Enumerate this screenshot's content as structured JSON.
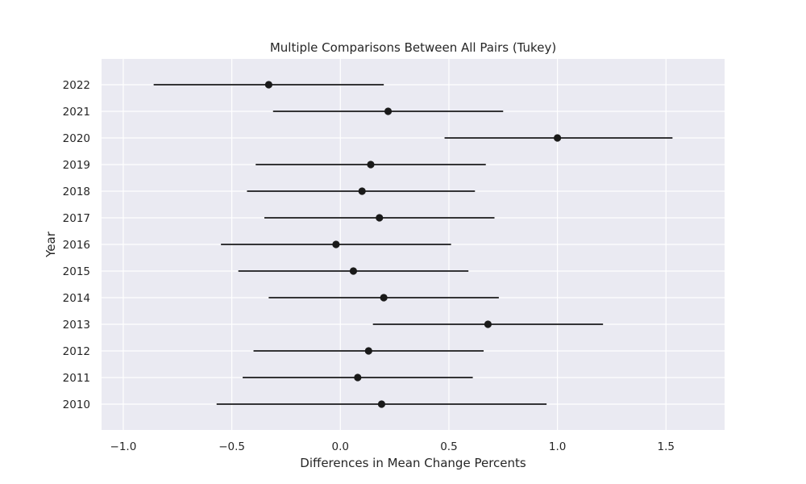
{
  "chart_data": {
    "type": "errorbar",
    "title": "Multiple Comparisons Between All Pairs (Tukey)",
    "xlabel": "Differences in Mean Change Percents",
    "ylabel": "Year",
    "xlim": [
      -1.1,
      1.77
    ],
    "xticks": [
      -1.0,
      -0.5,
      0.0,
      0.5,
      1.0,
      1.5
    ],
    "xtick_labels": [
      "−1.0",
      "−0.5",
      "0.0",
      "0.5",
      "1.0",
      "1.5"
    ],
    "grid": true,
    "background_color": "#eaeaf2",
    "grid_color": "#ffffff",
    "mark_color": "#1a1a1a",
    "series": [
      {
        "category": "2022",
        "mean": -0.33,
        "lower": -0.86,
        "upper": 0.2
      },
      {
        "category": "2021",
        "mean": 0.22,
        "lower": -0.31,
        "upper": 0.75
      },
      {
        "category": "2020",
        "mean": 1.0,
        "lower": 0.48,
        "upper": 1.53
      },
      {
        "category": "2019",
        "mean": 0.14,
        "lower": -0.39,
        "upper": 0.67
      },
      {
        "category": "2018",
        "mean": 0.1,
        "lower": -0.43,
        "upper": 0.62
      },
      {
        "category": "2017",
        "mean": 0.18,
        "lower": -0.35,
        "upper": 0.71
      },
      {
        "category": "2016",
        "mean": -0.02,
        "lower": -0.55,
        "upper": 0.51
      },
      {
        "category": "2015",
        "mean": 0.06,
        "lower": -0.47,
        "upper": 0.59
      },
      {
        "category": "2014",
        "mean": 0.2,
        "lower": -0.33,
        "upper": 0.73
      },
      {
        "category": "2013",
        "mean": 0.68,
        "lower": 0.15,
        "upper": 1.21
      },
      {
        "category": "2012",
        "mean": 0.13,
        "lower": -0.4,
        "upper": 0.66
      },
      {
        "category": "2011",
        "mean": 0.08,
        "lower": -0.45,
        "upper": 0.61
      },
      {
        "category": "2010",
        "mean": 0.19,
        "lower": -0.57,
        "upper": 0.95
      }
    ]
  }
}
